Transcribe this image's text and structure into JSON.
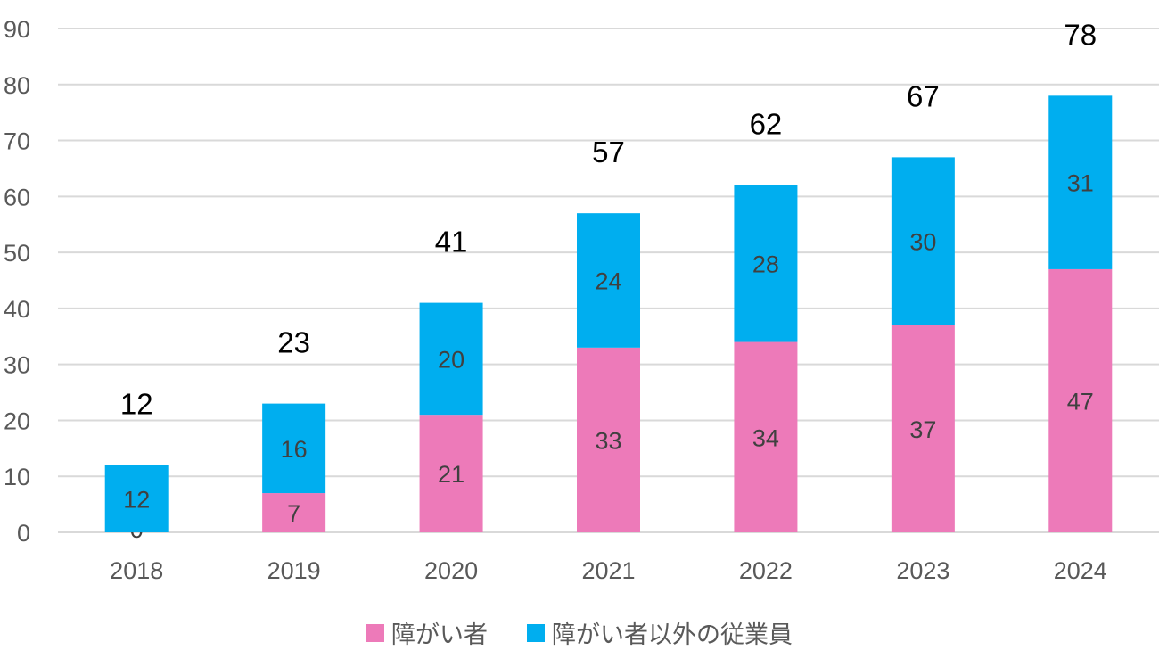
{
  "chart_data": {
    "type": "bar",
    "stacked": true,
    "categories": [
      "2018",
      "2019",
      "2020",
      "2021",
      "2022",
      "2023",
      "2024"
    ],
    "series": [
      {
        "name": "障がい者",
        "values": [
          0,
          7,
          21,
          33,
          34,
          37,
          47
        ],
        "color": "#ED7AB9"
      },
      {
        "name": "障がい者以外の従業員",
        "values": [
          12,
          16,
          20,
          24,
          28,
          30,
          31
        ],
        "color": "#00AEEF"
      }
    ],
    "totals": [
      12,
      23,
      41,
      57,
      62,
      67,
      78
    ],
    "ylim": [
      0,
      90
    ],
    "yticks": [
      0,
      10,
      20,
      30,
      40,
      50,
      60,
      70,
      80,
      90
    ],
    "grid": true,
    "legend_position": "bottom",
    "title": "",
    "xlabel": "",
    "ylabel": ""
  }
}
